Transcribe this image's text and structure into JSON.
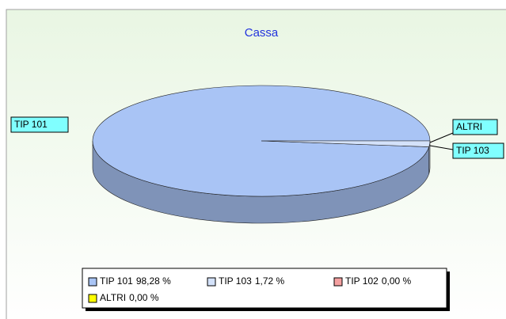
{
  "chart_data": {
    "type": "pie3d",
    "title": "Cassa",
    "categories": [
      "TIP 101",
      "TIP 103",
      "TIP 102",
      "ALTRI"
    ],
    "values": [
      98.28,
      1.72,
      0.0,
      0.0
    ],
    "value_labels": [
      "98,28 %",
      "1,72 %",
      "0,00 %",
      "0,00 %"
    ],
    "colors": [
      "#a9c4f5",
      "#d4e2fa",
      "#f4a0a0",
      "#ffff00"
    ]
  }
}
